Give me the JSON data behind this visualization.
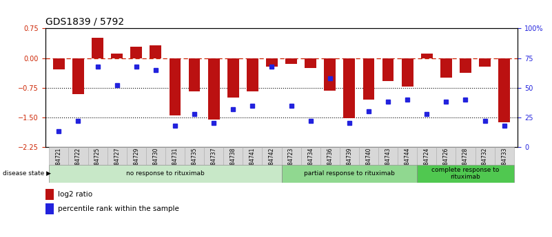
{
  "title": "GDS1839 / 5792",
  "samples": [
    "GSM84721",
    "GSM84722",
    "GSM84725",
    "GSM84727",
    "GSM84729",
    "GSM84730",
    "GSM84731",
    "GSM84735",
    "GSM84737",
    "GSM84738",
    "GSM84741",
    "GSM84742",
    "GSM84723",
    "GSM84734",
    "GSM84736",
    "GSM84739",
    "GSM84740",
    "GSM84743",
    "GSM84744",
    "GSM84724",
    "GSM84726",
    "GSM84728",
    "GSM84732",
    "GSM84733"
  ],
  "log2_ratio": [
    -0.28,
    -0.92,
    0.52,
    0.12,
    0.28,
    0.32,
    -1.45,
    -0.85,
    -1.55,
    -1.0,
    -0.85,
    -0.22,
    -0.15,
    -0.25,
    -0.82,
    -1.52,
    -1.05,
    -0.58,
    -0.72,
    0.12,
    -0.5,
    -0.38,
    -0.22,
    -1.62
  ],
  "percentile": [
    13,
    22,
    68,
    52,
    68,
    65,
    18,
    28,
    20,
    32,
    35,
    68,
    35,
    22,
    58,
    20,
    30,
    38,
    40,
    28,
    38,
    40,
    22,
    18
  ],
  "groups": [
    {
      "label": "no response to rituximab",
      "start": 0,
      "end": 11,
      "color": "#c8e8c8"
    },
    {
      "label": "partial response to rituximab",
      "start": 12,
      "end": 18,
      "color": "#90d890"
    },
    {
      "label": "complete response to\nrituximab",
      "start": 19,
      "end": 23,
      "color": "#50c850"
    }
  ],
  "bar_color": "#bb1111",
  "dot_color": "#2222dd",
  "ylim_left": [
    -2.25,
    0.75
  ],
  "ylim_right": [
    0,
    100
  ],
  "yticks_left": [
    0.75,
    0,
    -0.75,
    -1.5,
    -2.25
  ],
  "yticks_right": [
    0,
    25,
    50,
    75,
    100
  ],
  "hlines": [
    -0.75,
    -1.5
  ],
  "zero_line_y": 0.0,
  "zero_line_color": "#cc2200",
  "label_fontsize": 7,
  "tick_fontsize": 7,
  "title_fontsize": 10
}
